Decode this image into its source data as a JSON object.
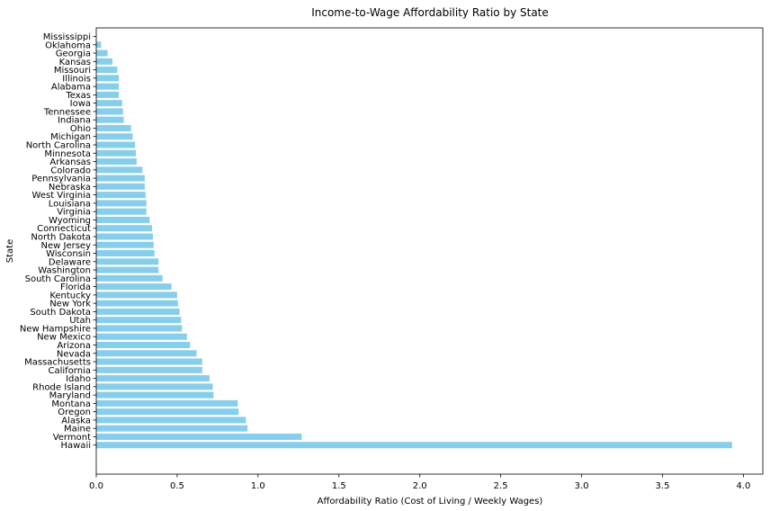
{
  "chart_data": {
    "type": "bar",
    "orientation": "horizontal",
    "title": "Income-to-Wage Affordability Ratio by State",
    "xlabel": "Affordability Ratio (Cost of Living / Weekly Wages)",
    "ylabel": "State",
    "xlim": [
      0,
      4.12
    ],
    "xticks": [
      "0.0",
      "0.5",
      "1.0",
      "1.5",
      "2.0",
      "2.5",
      "3.0",
      "3.5",
      "4.0"
    ],
    "grid": false,
    "bar_color": "#87ceeb",
    "categories": [
      "Mississippi",
      "Oklahoma",
      "Georgia",
      "Kansas",
      "Missouri",
      "Illinois",
      "Alabama",
      "Texas",
      "Iowa",
      "Tennessee",
      "Indiana",
      "Ohio",
      "Michigan",
      "North Carolina",
      "Minnesota",
      "Arkansas",
      "Colorado",
      "Pennsylvania",
      "Nebraska",
      "West Virginia",
      "Louisiana",
      "Virginia",
      "Wyoming",
      "Connecticut",
      "North Dakota",
      "New Jersey",
      "Wisconsin",
      "Delaware",
      "Washington",
      "South Carolina",
      "Florida",
      "Kentucky",
      "New York",
      "South Dakota",
      "Utah",
      "New Hampshire",
      "New Mexico",
      "Arizona",
      "Nevada",
      "Massachusetts",
      "California",
      "Idaho",
      "Rhode Island",
      "Maryland",
      "Montana",
      "Oregon",
      "Alaska",
      "Maine",
      "Vermont",
      "Hawaii"
    ],
    "values": [
      0.0,
      0.03,
      0.07,
      0.1,
      0.13,
      0.14,
      0.14,
      0.14,
      0.16,
      0.165,
      0.17,
      0.215,
      0.225,
      0.24,
      0.245,
      0.25,
      0.285,
      0.3,
      0.3,
      0.305,
      0.31,
      0.31,
      0.33,
      0.345,
      0.35,
      0.355,
      0.36,
      0.385,
      0.385,
      0.41,
      0.465,
      0.5,
      0.505,
      0.515,
      0.525,
      0.53,
      0.56,
      0.58,
      0.62,
      0.655,
      0.655,
      0.7,
      0.72,
      0.725,
      0.875,
      0.88,
      0.925,
      0.935,
      1.27,
      3.93
    ]
  }
}
